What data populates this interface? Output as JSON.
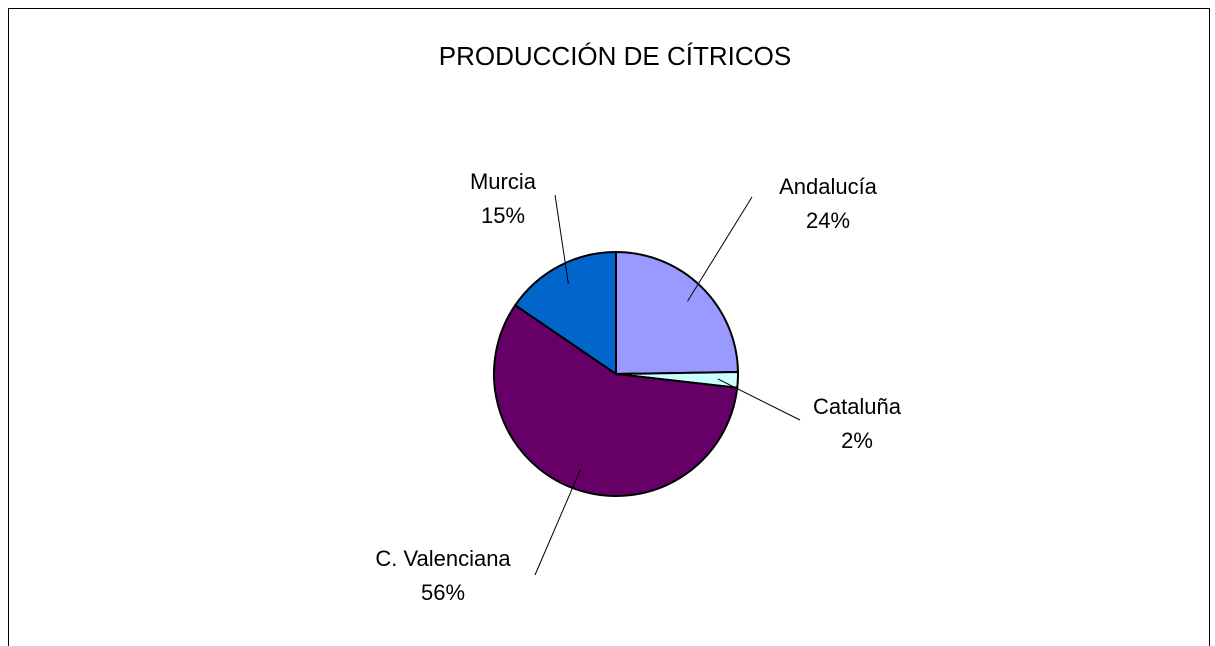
{
  "chart_data": {
    "type": "pie",
    "title": "PRODUCCIÓN DE CÍTRICOS",
    "categories": [
      "Andalucía",
      "Cataluña",
      "C. Valenciana",
      "Murcia"
    ],
    "values": [
      24,
      2,
      56,
      15
    ],
    "value_labels": [
      "24%",
      "2%",
      "56%",
      "15%"
    ],
    "colors": [
      "#9999ff",
      "#ccffff",
      "#660066",
      "#0066cc"
    ]
  }
}
